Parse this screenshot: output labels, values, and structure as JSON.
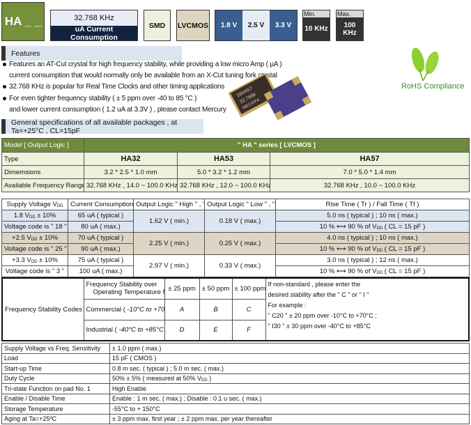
{
  "header": {
    "model": "HA _ _",
    "frequency": "32.768 KHz",
    "current": "uA  Current  Consumption",
    "package": "SMD",
    "logic": "LVCMOS",
    "voltages": [
      "1.8  V",
      "2.5 V",
      "3.3 V"
    ],
    "min_label": "Min.",
    "min_value": "10 KHz",
    "max_label": "Max.",
    "max_value": "100 KHz",
    "colors": {
      "model_bg": "#76913a",
      "navy": "#12233f",
      "blue": "#3a5e8f"
    }
  },
  "features": {
    "title": "Features",
    "lines": [
      "Features an AT-Cut crystal for high frequency stability, while providing a low micro Amp ( µA )",
      "current consumption that would normally only be available from an X-Cut tuning fork crystal",
      "32.768 KHz is popular for Real Time Clocks and other timing applications",
      "For even tighter frequency stability ( ± 5 ppm over -40 to 85 °C )",
      "and lower current consumption ( 1.2 uA at 3.3V ) , please contact Mercury"
    ],
    "rohs": "RoHS Compliance",
    "product_markings": [
      "18HA57",
      "32.768K",
      "MECA/FA"
    ]
  },
  "general": {
    "title": "General specifications of all available packages  ,  at Ta=+25°C , CL=15pF"
  },
  "table1": {
    "header_left": "Model  [  Output Logic  ]",
    "header_right": "\" HA \" series  [  LVCMOS  ]",
    "rows": [
      [
        "Type",
        "HA32",
        "HA53",
        "HA57"
      ],
      [
        "Dimemsions",
        "3.2 * 2.5 * 1.0 mm",
        "5.0 * 3.2 * 1.2 mm",
        "7.0 * 5.0 * 1.4 mm"
      ],
      [
        "Available Frequency Range",
        "32.768 KHz   ,   14.0 ~ 100.0 KHz",
        "32.768 KHz   ,   12.0 ~ 100.0 KHz",
        "32.768 KHz   ,   10.0 ~ 100.0 KHz"
      ]
    ]
  },
  "table2": {
    "headers": [
      "Supply Voltage V",
      "Current  Consumption",
      "Output Logic \" High \" , \" 1 \"",
      "Output Logic \" Low \" , \" 0 \"",
      "Rise Time ( Tr )  / Fall Time  ( Tf )"
    ],
    "dd": "DD",
    "rows": [
      {
        "v1": "1.8 V",
        "v2": " ± 10%",
        "code": "Voltage code is \" 18 \"",
        "typ": "65 uA ( typical )",
        "max": "80 uA ( max.)",
        "high": "1.62 V ( min.)",
        "low": "0.18 V ( max.)",
        "rise": "5.0 ns ( typical )  ;  10 ns ( max.)",
        "ref": "10 % ⟷ 90 % of V",
        "ref2": " ( CL = 15 pF )"
      },
      {
        "v1": "+2.5 V",
        "v2": " ± 10%",
        "code": "Voltage code is \" 25 \"",
        "typ": "70 uA ( typical )",
        "max": "90 uA ( max.)",
        "high": "2.25 V ( min.)",
        "low": "0.25 V ( max.)",
        "rise": "4.0 ns ( typical )  ;  10 ns ( max.)",
        "ref": "10 % ⟷ 90 % of V",
        "ref2": " ( CL = 15 pF )"
      },
      {
        "v1": "+3.3 V",
        "v2": " ± 10%",
        "code": "Voltage code is \" 3 \"",
        "typ": "75 uA ( typical )",
        "max": "100 uA ( max.)",
        "high": "2.97 V ( min.)",
        "low": "0.33 V ( max.)",
        "rise": "3.0 ns ( typical )  ;  12 ns ( max.)",
        "ref": "10 % ⟷ 90 % of V",
        "ref2": " ( CL = 15 pF )"
      }
    ]
  },
  "table3": {
    "label": "Frequency Stability Codes",
    "head1": "Frequency Stability over",
    "head2": "Operating Temperature Range",
    "ppm": [
      "± 25 ppm",
      "± 50 ppm",
      "± 100 ppm"
    ],
    "commercial": "Commercial  ( ",
    "commercial_range": "-10°C to +70°C",
    "industrial": "Industrial  ( ",
    "industrial_range": "-40°C to +85°C",
    "close": " )",
    "codes_c": [
      "A",
      "B",
      "C"
    ],
    "codes_i": [
      "D",
      "E",
      "F"
    ],
    "note": [
      "If non-standard , please enter  the",
      "desired stability after the  \" C \" or  \" I \"",
      "For example :",
      "\" C20 \" ± 20 ppm over -10°C to +70°C ;",
      "\" I30 \"  ± 30 ppm over -40°C to +85°C"
    ]
  },
  "table4": {
    "rows": [
      [
        "Supply Voltage vs Freq. Sensitivity",
        "± 1.0 ppm ( max.)"
      ],
      [
        "Load",
        "15 pF ( CMOS )"
      ],
      [
        "Start-up Time",
        "0.8 m sec. ( typical )   ;   5.0 m sec. ( max.)"
      ],
      [
        "Duty Cycle",
        "50% ± 5% ( measured at 50% V"
      ],
      [
        "Tri-state Function on pad No. 1",
        "High Enable"
      ],
      [
        "Enable / Disable Time",
        "Enable : 1 m sec. ( max.)   ;   Disable : 0.1 u sec. ( max.)"
      ],
      [
        "Storage Temperature",
        "-55°C to + 150°C"
      ],
      [
        "Aging at Ta=+25ºC",
        "± 3 ppm max. first year ; ± 2 ppm max. per year thereafter"
      ]
    ],
    "duty_suffix": " )"
  }
}
